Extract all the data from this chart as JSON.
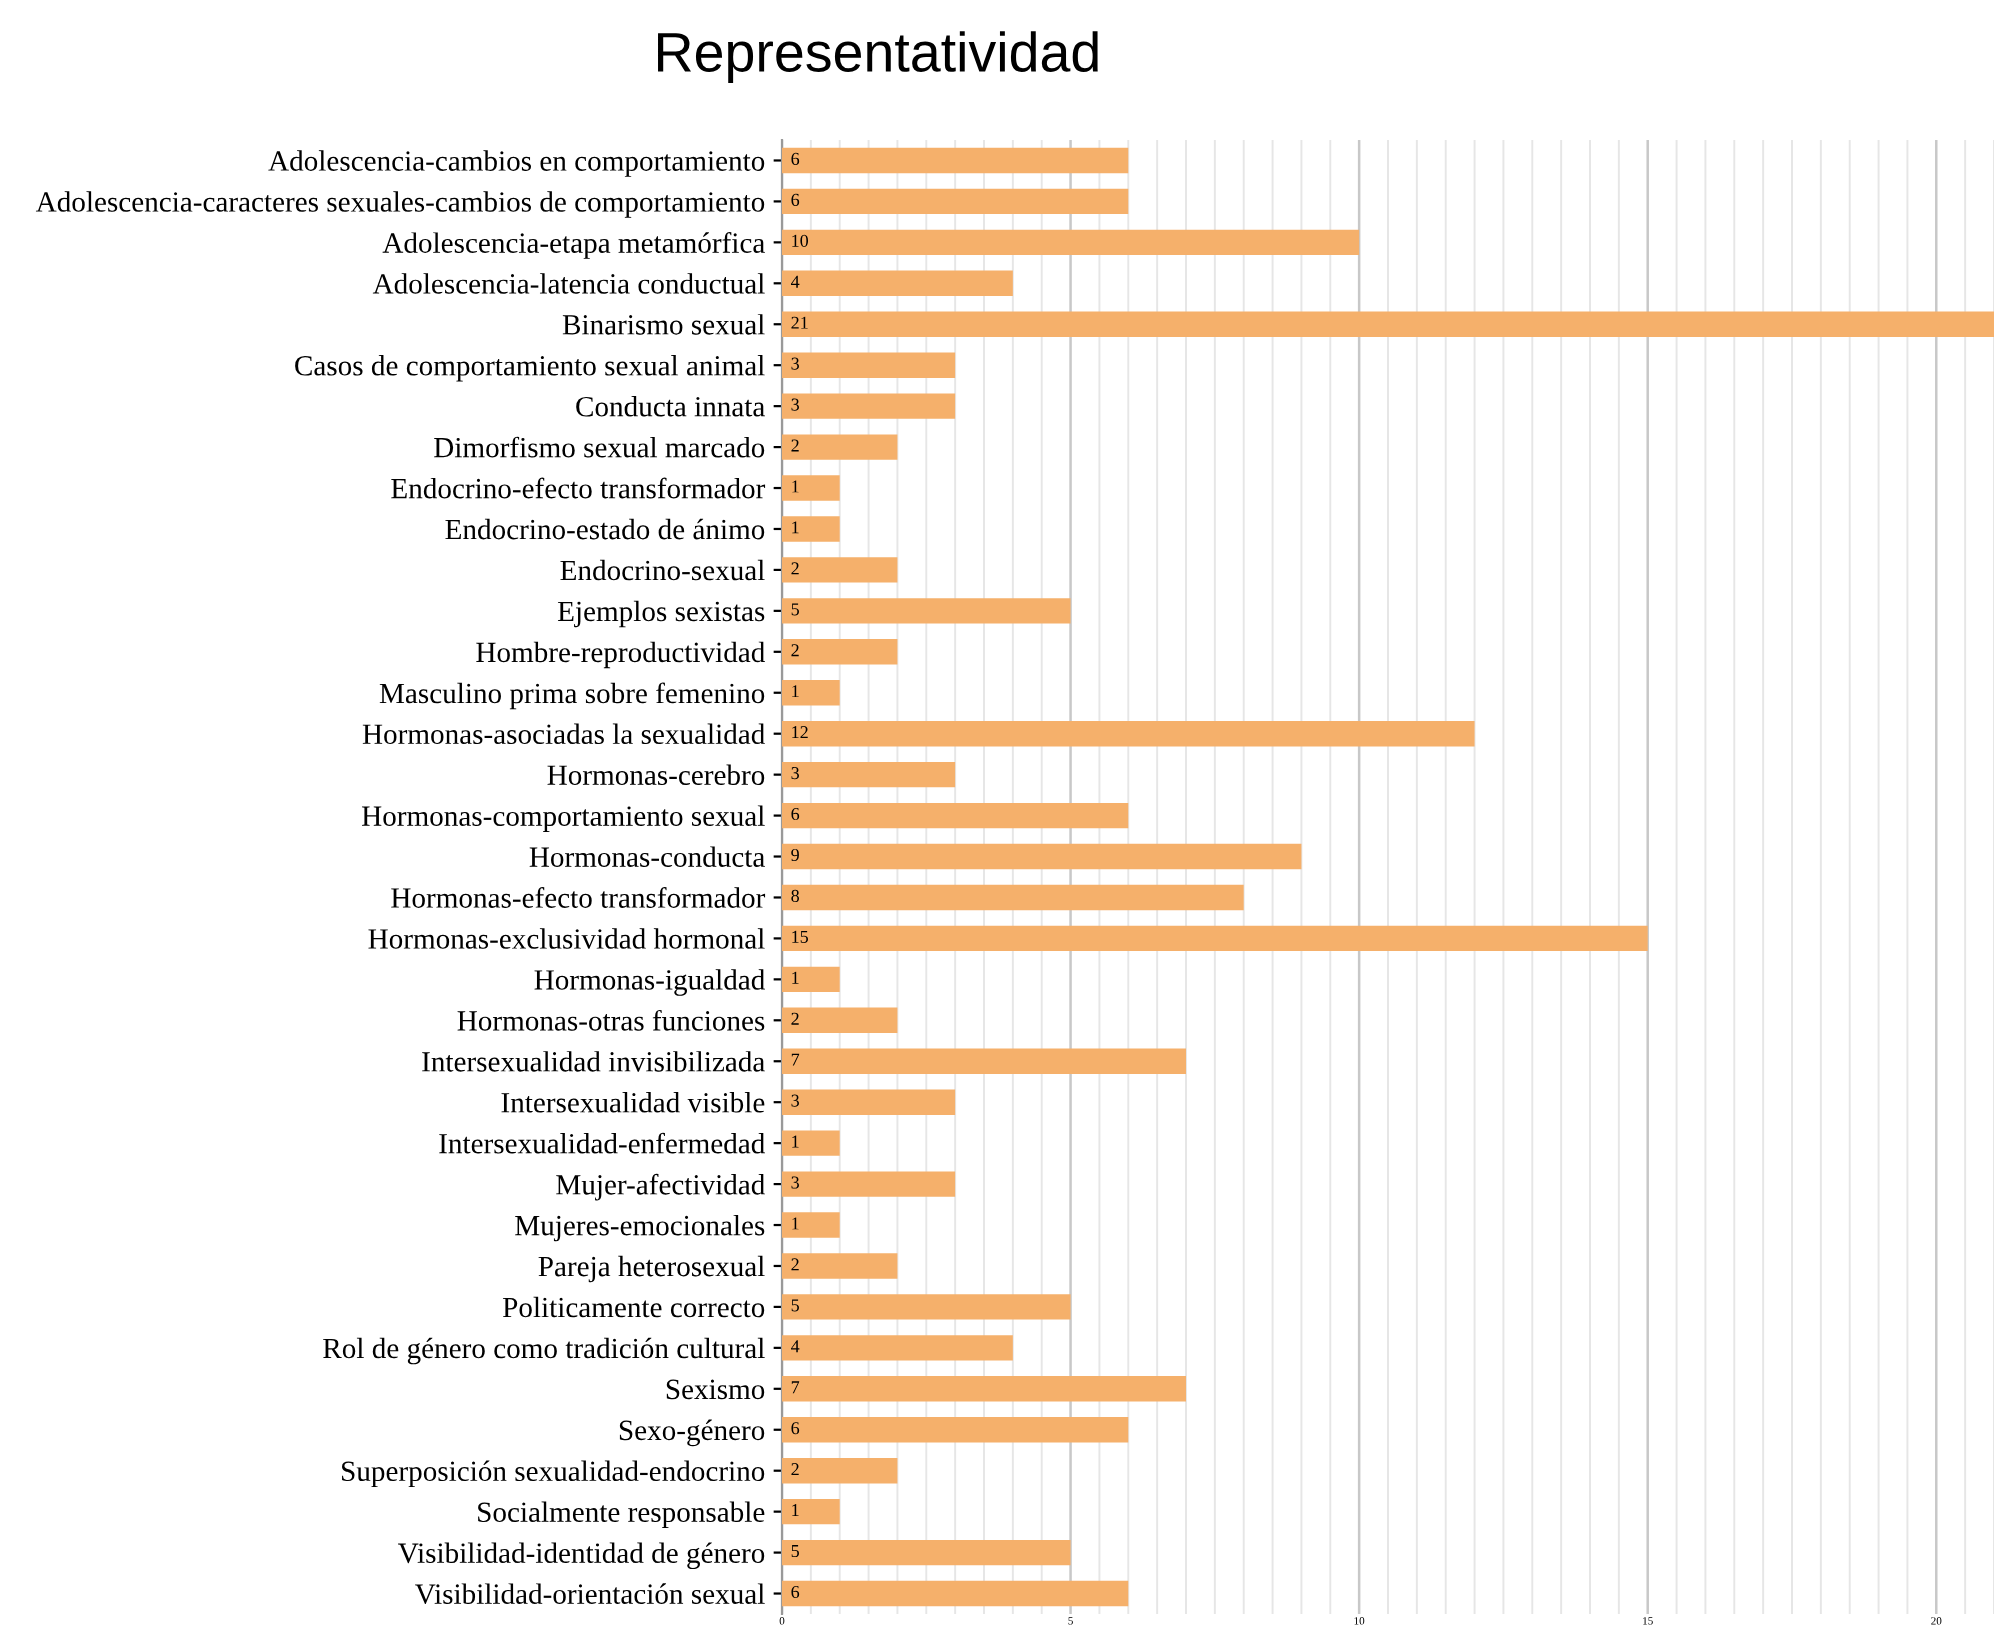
{
  "chart_data": {
    "type": "bar",
    "orientation": "horizontal",
    "title": "Representatividad",
    "categories": [
      "Adolescencia-cambios en comportamiento",
      "Adolescencia-caracteres sexuales-cambios de comportamiento",
      "Adolescencia-etapa metamórfica",
      "Adolescencia-latencia conductual",
      "Binarismo sexual",
      "Casos de comportamiento sexual animal",
      "Conducta innata",
      "Dimorfismo sexual marcado",
      "Endocrino-efecto transformador",
      "Endocrino-estado de ánimo",
      "Endocrino-sexual",
      "Ejemplos sexistas",
      "Hombre-reproductividad",
      "Masculino prima sobre femenino",
      "Hormonas-asociadas la sexualidad",
      "Hormonas-cerebro",
      "Hormonas-comportamiento sexual",
      "Hormonas-conducta",
      "Hormonas-efecto transformador",
      "Hormonas-exclusividad hormonal",
      "Hormonas-igualdad",
      "Hormonas-otras funciones",
      "Intersexualidad invisibilizada",
      "Intersexualidad visible",
      "Intersexualidad-enfermedad",
      "Mujer-afectividad",
      "Mujeres-emocionales",
      "Pareja heterosexual",
      "Politicamente correcto",
      "Rol de género como tradición cultural",
      "Sexismo",
      "Sexo-género",
      "Superposición sexualidad-endocrino",
      "Socialmente responsable",
      "Visibilidad-identidad de género",
      "Visibilidad-orientación sexual"
    ],
    "values": [
      6,
      6,
      10,
      4,
      21,
      3,
      3,
      2,
      1,
      1,
      2,
      5,
      2,
      1,
      12,
      3,
      6,
      9,
      8,
      15,
      1,
      2,
      7,
      3,
      1,
      3,
      1,
      2,
      5,
      4,
      7,
      6,
      2,
      1,
      5,
      6
    ],
    "color": "#f5b06b",
    "data_labels": true,
    "xlim": [
      0,
      21
    ],
    "xticks": [
      0,
      5,
      10,
      15,
      20
    ],
    "grid": "x"
  }
}
